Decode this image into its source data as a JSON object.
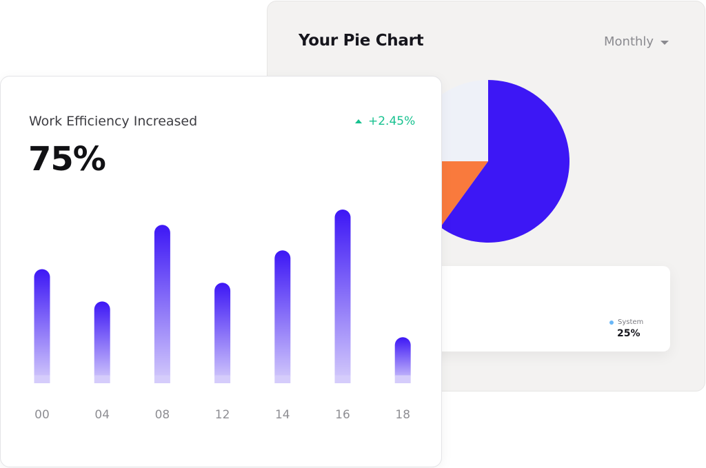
{
  "pie_card": {
    "title": "Your Pie Chart",
    "period": "Monthly",
    "legend": {
      "name": "System",
      "value": "25%",
      "color": "#6ab7f7"
    }
  },
  "bar_card": {
    "title": "Work Efficiency Increased",
    "value": "75%",
    "delta": "+2.45%",
    "delta_color": "#17c18f"
  },
  "chart_data": [
    {
      "type": "pie",
      "title": "Your Pie Chart",
      "slices": [
        {
          "value": 0.6,
          "color": "#3d17f5"
        },
        {
          "value": 0.15,
          "color": "#f97a3d"
        },
        {
          "value": 0.25,
          "color": "#eef1f8"
        }
      ]
    },
    {
      "type": "bar",
      "title": "Work Efficiency Increased",
      "categories": [
        "00",
        "04",
        "08",
        "12",
        "14",
        "16",
        "18"
      ],
      "values": [
        67,
        48,
        93,
        59,
        78,
        102,
        27
      ],
      "ylim": [
        0,
        102
      ],
      "bar_color_top": "#3d17f5",
      "bar_color_bottom": "#d5ccfb"
    }
  ]
}
